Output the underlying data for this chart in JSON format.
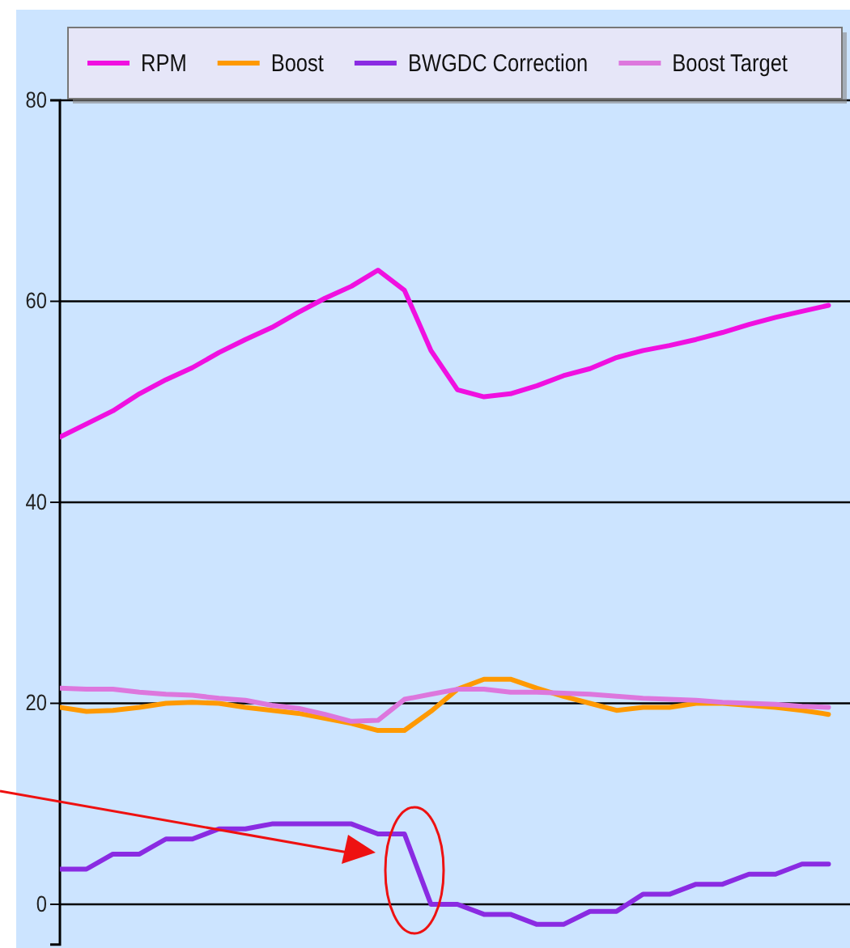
{
  "chart_data": {
    "type": "line",
    "categories": [
      null,
      null,
      null,
      null,
      null,
      null,
      null,
      null,
      null,
      null,
      null,
      null,
      null,
      null,
      null,
      null,
      null,
      null,
      null,
      null,
      null,
      null,
      null,
      null,
      null,
      null,
      null,
      null,
      null,
      null
    ],
    "series": [
      {
        "name": "RPM",
        "color": "#f010e0",
        "values": [
          46.5,
          47.8,
          49.1,
          50.8,
          52.2,
          53.4,
          54.9,
          56.2,
          57.4,
          58.9,
          60.3,
          61.5,
          63.1,
          61.1,
          55.1,
          51.2,
          50.5,
          50.8,
          51.6,
          52.6,
          53.3,
          54.4,
          55.1,
          55.6,
          56.2,
          56.9,
          57.7,
          58.4,
          59.0,
          59.6
        ]
      },
      {
        "name": "Boost",
        "color": "#ff9900",
        "values": [
          19.6,
          19.2,
          19.3,
          19.6,
          20,
          20.1,
          20,
          19.6,
          19.3,
          19.0,
          18.5,
          18.0,
          17.3,
          17.3,
          19.2,
          21.4,
          22.4,
          22.4,
          21.5,
          20.7,
          20,
          19.3,
          19.6,
          19.6,
          20,
          20,
          19.8,
          19.6,
          19.3,
          18.9
        ]
      },
      {
        "name": "BWGDC Correction",
        "color": "#8a2be2",
        "values": [
          3.5,
          3.5,
          5,
          5,
          6.5,
          6.5,
          7.5,
          7.5,
          8,
          8,
          8,
          8,
          7,
          7,
          0,
          0,
          -1,
          -1,
          -2,
          -2,
          -0.7,
          -0.7,
          1,
          1,
          2,
          2,
          3,
          3,
          4,
          4
        ]
      },
      {
        "name": "Boost Target",
        "color": "#dd77dd",
        "values": [
          21.5,
          21.4,
          21.4,
          21.1,
          20.9,
          20.8,
          20.5,
          20.3,
          19.8,
          19.5,
          18.9,
          18.2,
          18.3,
          20.4,
          20.9,
          21.4,
          21.4,
          21.1,
          21.1,
          21.0,
          20.9,
          20.7,
          20.5,
          20.4,
          20.3,
          20.1,
          20.0,
          19.9,
          19.7,
          19.6
        ]
      }
    ],
    "ylim": [
      -4,
      80
    ],
    "yticks": [
      0,
      20,
      40,
      60,
      80
    ],
    "grid": "y",
    "legend": "top",
    "tick_labels": "y"
  }
}
